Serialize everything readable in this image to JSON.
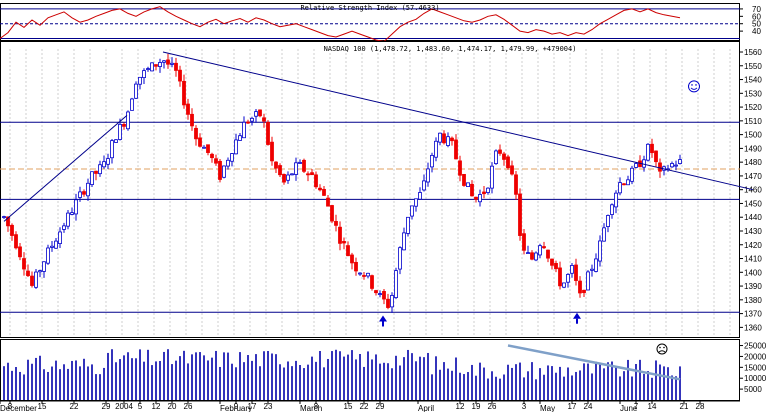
{
  "chart_data": {
    "type": "candlestick",
    "rsi_panel": {
      "title": "Relative Strength Index (57.4633)",
      "yticks": [
        40,
        50,
        60,
        70
      ],
      "guide_levels": [
        70,
        50,
        30
      ],
      "series": [
        {
          "x": 0,
          "y": 30
        },
        {
          "x": 8,
          "y": 38
        },
        {
          "x": 16,
          "y": 52
        },
        {
          "x": 24,
          "y": 45
        },
        {
          "x": 32,
          "y": 55
        },
        {
          "x": 40,
          "y": 48
        },
        {
          "x": 48,
          "y": 58
        },
        {
          "x": 56,
          "y": 62
        },
        {
          "x": 64,
          "y": 66
        },
        {
          "x": 72,
          "y": 58
        },
        {
          "x": 80,
          "y": 52
        },
        {
          "x": 88,
          "y": 55
        },
        {
          "x": 96,
          "y": 60
        },
        {
          "x": 104,
          "y": 64
        },
        {
          "x": 112,
          "y": 68
        },
        {
          "x": 120,
          "y": 70
        },
        {
          "x": 128,
          "y": 64
        },
        {
          "x": 136,
          "y": 60
        },
        {
          "x": 144,
          "y": 66
        },
        {
          "x": 152,
          "y": 70
        },
        {
          "x": 160,
          "y": 73
        },
        {
          "x": 168,
          "y": 66
        },
        {
          "x": 176,
          "y": 60
        },
        {
          "x": 184,
          "y": 55
        },
        {
          "x": 192,
          "y": 50
        },
        {
          "x": 200,
          "y": 46
        },
        {
          "x": 208,
          "y": 52
        },
        {
          "x": 216,
          "y": 56
        },
        {
          "x": 224,
          "y": 50
        },
        {
          "x": 232,
          "y": 54
        },
        {
          "x": 240,
          "y": 57
        },
        {
          "x": 248,
          "y": 52
        },
        {
          "x": 256,
          "y": 58
        },
        {
          "x": 264,
          "y": 55
        },
        {
          "x": 272,
          "y": 50
        },
        {
          "x": 280,
          "y": 46
        },
        {
          "x": 288,
          "y": 48
        },
        {
          "x": 296,
          "y": 50
        },
        {
          "x": 304,
          "y": 46
        },
        {
          "x": 312,
          "y": 42
        },
        {
          "x": 320,
          "y": 38
        },
        {
          "x": 328,
          "y": 34
        },
        {
          "x": 336,
          "y": 32
        },
        {
          "x": 344,
          "y": 36
        },
        {
          "x": 352,
          "y": 40
        },
        {
          "x": 360,
          "y": 36
        },
        {
          "x": 368,
          "y": 32
        },
        {
          "x": 376,
          "y": 28
        },
        {
          "x": 384,
          "y": 26
        },
        {
          "x": 392,
          "y": 36
        },
        {
          "x": 400,
          "y": 46
        },
        {
          "x": 408,
          "y": 52
        },
        {
          "x": 416,
          "y": 56
        },
        {
          "x": 424,
          "y": 64
        },
        {
          "x": 432,
          "y": 70
        },
        {
          "x": 440,
          "y": 66
        },
        {
          "x": 448,
          "y": 62
        },
        {
          "x": 456,
          "y": 58
        },
        {
          "x": 464,
          "y": 54
        },
        {
          "x": 472,
          "y": 52
        },
        {
          "x": 480,
          "y": 55
        },
        {
          "x": 488,
          "y": 60
        },
        {
          "x": 496,
          "y": 62
        },
        {
          "x": 504,
          "y": 56
        },
        {
          "x": 512,
          "y": 48
        },
        {
          "x": 520,
          "y": 40
        },
        {
          "x": 528,
          "y": 38
        },
        {
          "x": 536,
          "y": 42
        },
        {
          "x": 544,
          "y": 40
        },
        {
          "x": 552,
          "y": 36
        },
        {
          "x": 560,
          "y": 38
        },
        {
          "x": 568,
          "y": 34
        },
        {
          "x": 576,
          "y": 38
        },
        {
          "x": 584,
          "y": 36
        },
        {
          "x": 592,
          "y": 42
        },
        {
          "x": 600,
          "y": 50
        },
        {
          "x": 608,
          "y": 56
        },
        {
          "x": 616,
          "y": 62
        },
        {
          "x": 624,
          "y": 68
        },
        {
          "x": 632,
          "y": 70
        },
        {
          "x": 640,
          "y": 66
        },
        {
          "x": 648,
          "y": 70
        },
        {
          "x": 656,
          "y": 65
        },
        {
          "x": 664,
          "y": 62
        },
        {
          "x": 672,
          "y": 60
        },
        {
          "x": 680,
          "y": 58
        }
      ]
    },
    "price_panel": {
      "title": "NASDAQ 100 (1,478.72, 1,483.60, 1,474.17, 1,479.99, +479004)",
      "ylim": [
        1353,
        1568
      ],
      "yticks": [
        1360,
        1370,
        1380,
        1390,
        1400,
        1410,
        1420,
        1430,
        1440,
        1450,
        1460,
        1470,
        1480,
        1490,
        1500,
        1510,
        1520,
        1530,
        1540,
        1550,
        1560
      ],
      "resistance_level": 1509,
      "support_level": 1453,
      "low_level": 1371,
      "dashed_level": 1475,
      "trendline_1": [
        {
          "x": 4,
          "y": 1437
        },
        {
          "x": 127,
          "y": 1514
        }
      ],
      "trendline_2": [
        {
          "x": 163,
          "y": 1560
        },
        {
          "x": 753,
          "y": 1460
        }
      ],
      "up_arrows": [
        {
          "x": 383,
          "y": 1365
        },
        {
          "x": 577,
          "y": 1367
        }
      ]
    },
    "volume_panel": {
      "yticks": [
        "5000",
        "10000",
        "15000",
        "20000",
        "25000"
      ],
      "ylim": [
        0,
        28000
      ],
      "trendline": [
        {
          "x": 508,
          "y": 25000
        },
        {
          "x": 680,
          "y": 9500
        }
      ]
    },
    "x_labels": [
      "December",
      "8",
      "15",
      "22",
      "29",
      "2004",
      "5",
      "12",
      "20",
      "26",
      "February",
      "9",
      "17",
      "23",
      "March",
      "8",
      "15",
      "22",
      "29",
      "April",
      "12",
      "19",
      "26",
      "3",
      "May",
      "17",
      "24",
      "June",
      "7",
      "14",
      "21",
      "28"
    ]
  }
}
